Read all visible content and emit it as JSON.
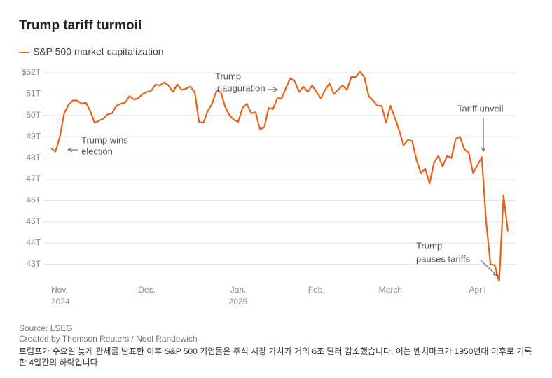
{
  "chart_data": {
    "type": "line",
    "title": "Trump tariff turmoil",
    "series": [
      {
        "name": "S&P 500 market capitalization",
        "color": "#e5621b",
        "values": [
          48.45,
          48.3,
          49.0,
          50.1,
          50.5,
          50.7,
          50.7,
          50.55,
          50.6,
          50.2,
          49.65,
          49.75,
          49.85,
          50.05,
          50.1,
          50.45,
          50.55,
          50.6,
          50.9,
          50.75,
          50.8,
          51.0,
          51.1,
          51.15,
          51.45,
          51.4,
          51.55,
          51.4,
          51.1,
          51.45,
          51.2,
          51.25,
          51.35,
          51.1,
          49.7,
          49.65,
          50.2,
          50.55,
          51.15,
          51.1,
          50.4,
          50.0,
          49.8,
          49.7,
          50.35,
          50.55,
          50.1,
          50.15,
          49.35,
          49.45,
          50.35,
          50.3,
          50.8,
          50.8,
          51.3,
          51.75,
          51.6,
          51.1,
          51.35,
          51.1,
          51.4,
          51.1,
          50.8,
          51.2,
          51.5,
          51.0,
          51.2,
          51.4,
          51.2,
          51.8,
          51.8,
          52.05,
          51.8,
          50.9,
          50.7,
          50.45,
          50.45,
          49.65,
          50.45,
          49.9,
          49.3,
          48.6,
          48.85,
          48.8,
          47.9,
          47.3,
          47.5,
          46.8,
          47.75,
          48.1,
          47.6,
          48.1,
          48.0,
          48.9,
          49.0,
          48.4,
          48.25,
          47.3,
          47.65,
          48.05,
          45.0,
          43.0,
          42.95,
          42.2,
          46.25,
          44.55
        ]
      }
    ],
    "categories": [
      "Nov. 2024",
      null,
      null,
      null,
      null,
      null,
      null,
      null,
      null,
      null,
      null,
      null,
      null,
      null,
      null,
      null,
      null,
      null,
      null,
      null,
      null,
      null,
      "Dec.",
      null,
      null,
      null,
      null,
      null,
      null,
      null,
      null,
      null,
      null,
      null,
      null,
      null,
      null,
      null,
      null,
      null,
      null,
      null,
      null,
      "Jan. 2025",
      null,
      null,
      null,
      null,
      null,
      null,
      null,
      null,
      null,
      null,
      null,
      null,
      null,
      null,
      null,
      null,
      null,
      "Feb.",
      null,
      null,
      null,
      null,
      null,
      null,
      null,
      null,
      null,
      null,
      null,
      null,
      null,
      null,
      null,
      null,
      "March",
      null,
      null,
      null,
      null,
      null,
      null,
      null,
      null,
      null,
      null,
      null,
      null,
      null,
      null,
      null,
      null,
      null,
      null,
      null,
      "April",
      null,
      null,
      null,
      null,
      null,
      null,
      null
    ],
    "ylim": [
      42,
      52
    ],
    "yticks": [
      {
        "value": 52,
        "label": "$52T"
      },
      {
        "value": 51,
        "label": "51T"
      },
      {
        "value": 50,
        "label": "50T"
      },
      {
        "value": 49,
        "label": "49T"
      },
      {
        "value": 48,
        "label": "48T"
      },
      {
        "value": 47,
        "label": "47T"
      },
      {
        "value": 46,
        "label": "46T"
      },
      {
        "value": 45,
        "label": "45T"
      },
      {
        "value": 44,
        "label": "44T"
      },
      {
        "value": 43,
        "label": "43T"
      }
    ],
    "grid": true,
    "annotations": [
      {
        "lines": [
          "Trump wins",
          "election"
        ]
      },
      {
        "lines": [
          "Trump",
          "inauguration"
        ]
      },
      {
        "lines": [
          "Tariff unveil"
        ]
      },
      {
        "lines": [
          "Trump",
          "pauses tariffs"
        ]
      }
    ],
    "source": "Source: LSEG",
    "credit": "Created by Thomson Reuters / Noel Randewich",
    "caption": "트럼프가 수요일 늦게 관세를 발표한 이후 S&P 500 기업들은 주식 시장 가치가 거의 6조 달러 감소했습니다. 이는 벤치마크가 1950년대 이후로 기록한 4일간의 하락입니다."
  }
}
